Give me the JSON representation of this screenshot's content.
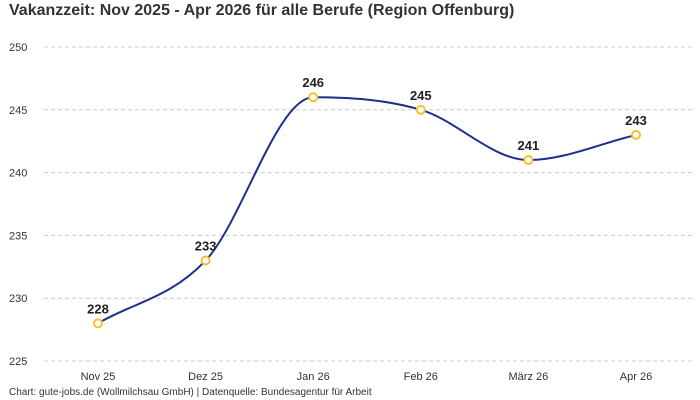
{
  "chart_data": {
    "type": "line",
    "title": "Vakanzzeit: Nov 2025 - Apr 2026 für alle Berufe (Region Offenburg)",
    "categories": [
      "Nov 25",
      "Dez 25",
      "Jan 26",
      "Feb 26",
      "März 26",
      "Apr 26"
    ],
    "values": [
      228,
      233,
      246,
      245,
      241,
      243
    ],
    "ylim": [
      225,
      250
    ],
    "yticks": [
      225,
      230,
      235,
      240,
      245,
      250
    ],
    "xlabel": "",
    "ylabel": "",
    "grid": true,
    "legend": "none",
    "footer": "Chart: gute-jobs.de (Wollmilchsau GmbH) | Datenquelle: Bundesagentur für Arbeit",
    "colors": {
      "line": "#1f2f8c",
      "marker": "#f2c230",
      "marker_fill": "#ffffff",
      "grid": "#cccccc"
    }
  }
}
